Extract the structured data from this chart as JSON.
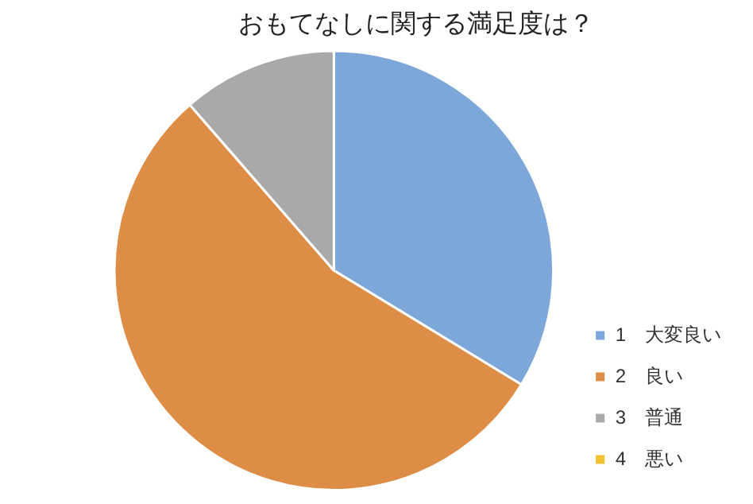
{
  "chart_data": {
    "type": "pie",
    "title": "おもてなしに関する満足度は？",
    "categories": [
      "1　大変良い",
      "2　良い",
      "3　普通",
      "4　悪い"
    ],
    "values": [
      33.7,
      54.9,
      11.4,
      0
    ],
    "colors": [
      "#7da7d9",
      "#dd8d45",
      "#a9a9a9",
      "#f2c12e"
    ],
    "legend": "bottom right"
  }
}
